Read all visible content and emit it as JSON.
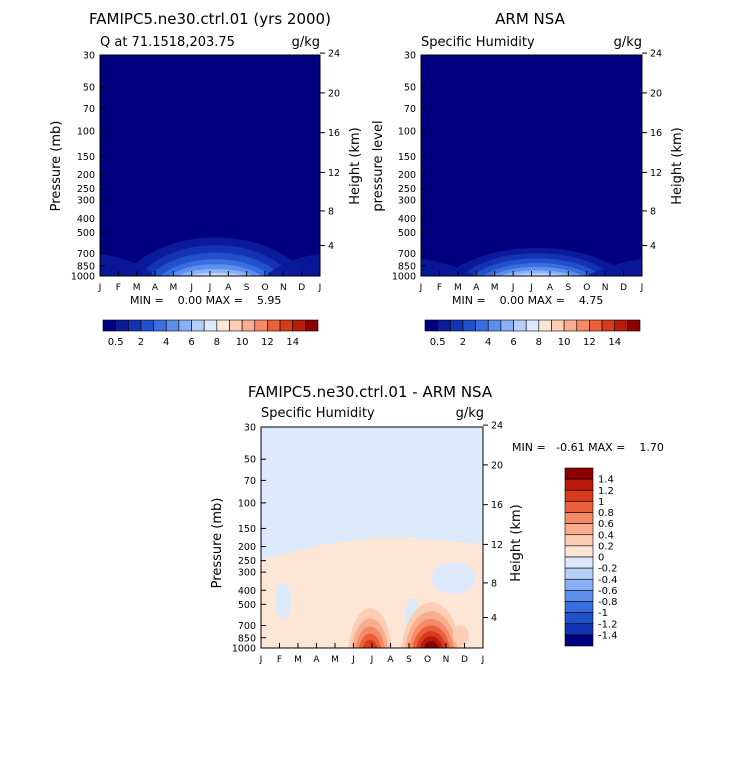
{
  "chart_data": [
    {
      "type": "contour",
      "title": "FAMIPC5.ne30.ctrl.01 (yrs 2000)",
      "subtitle_left": "Q at 71.1518,203.75",
      "units": "g/kg",
      "ylabel": "Pressure (mb)",
      "ylabel_right": "Height (km)",
      "x_ticks": [
        "J",
        "F",
        "M",
        "A",
        "M",
        "J",
        "J",
        "A",
        "S",
        "O",
        "N",
        "D",
        "J"
      ],
      "y_ticks": [
        "30",
        "50",
        "70",
        "100",
        "150",
        "200",
        "250",
        "300",
        "400",
        "500",
        "700",
        "850",
        "1000"
      ],
      "y_ticks_right": [
        "24",
        "20",
        "16",
        "12",
        "8",
        "4"
      ],
      "stats_text": "MIN =    0.00 MAX =    5.95",
      "min": 0.0,
      "max": 5.95
    },
    {
      "type": "contour",
      "title": "ARM NSA",
      "subtitle_left": "Specific Humidity",
      "units": "g/kg",
      "ylabel": "pressure level",
      "ylabel_right": "Height (km)",
      "x_ticks": [
        "J",
        "F",
        "M",
        "A",
        "M",
        "J",
        "J",
        "A",
        "S",
        "O",
        "N",
        "D",
        "J"
      ],
      "y_ticks": [
        "30",
        "50",
        "70",
        "100",
        "150",
        "200",
        "250",
        "300",
        "400",
        "500",
        "700",
        "850",
        "1000"
      ],
      "y_ticks_right": [
        "24",
        "20",
        "16",
        "12",
        "8",
        "4"
      ],
      "stats_text": "MIN =    0.00 MAX =    4.75",
      "min": 0.0,
      "max": 4.75
    },
    {
      "type": "contour",
      "title": "FAMIPC5.ne30.ctrl.01 - ARM NSA",
      "subtitle_left": "Specific Humidity",
      "units": "g/kg",
      "ylabel": "Pressure (mb)",
      "ylabel_right": "Height (km)",
      "x_ticks": [
        "J",
        "F",
        "M",
        "A",
        "M",
        "J",
        "J",
        "A",
        "S",
        "O",
        "N",
        "D",
        "J"
      ],
      "y_ticks": [
        "30",
        "50",
        "70",
        "100",
        "150",
        "200",
        "250",
        "300",
        "400",
        "500",
        "700",
        "850",
        "1000"
      ],
      "y_ticks_right": [
        "24",
        "20",
        "16",
        "12",
        "8",
        "4"
      ],
      "stats_text": "MIN =   -0.61 MAX =    1.70",
      "min": -0.61,
      "max": 1.7
    }
  ],
  "colorbar_top": {
    "labels": [
      "0.5",
      "2",
      "4",
      "6",
      "8",
      "10",
      "12",
      "14"
    ],
    "colors": [
      "#00007f",
      "#0a1a9a",
      "#1433b4",
      "#2050cc",
      "#3a6ee0",
      "#5e8fee",
      "#8ab0f5",
      "#b6cff8",
      "#dde9fb",
      "#fde6d6",
      "#fbcdb2",
      "#f8ae8e",
      "#f48a66",
      "#ea5f3c",
      "#d83a1c",
      "#b81a0c",
      "#8c0000"
    ]
  },
  "colorbar_diff": {
    "labels": [
      "1.4",
      "1.2",
      "1",
      "0.8",
      "0.6",
      "0.4",
      "0.2",
      "0",
      "-0.2",
      "-0.4",
      "-0.6",
      "-0.8",
      "-1",
      "-1.2",
      "-1.4"
    ],
    "colors": [
      "#8c0000",
      "#b81a0c",
      "#d83a1c",
      "#ea5f3c",
      "#f48a66",
      "#f8ae8e",
      "#fbcdb2",
      "#fde6d6",
      "#dde9fb",
      "#b6cff8",
      "#8ab0f5",
      "#5e8fee",
      "#3a6ee0",
      "#2050cc",
      "#1433b4",
      "#00007f"
    ]
  }
}
